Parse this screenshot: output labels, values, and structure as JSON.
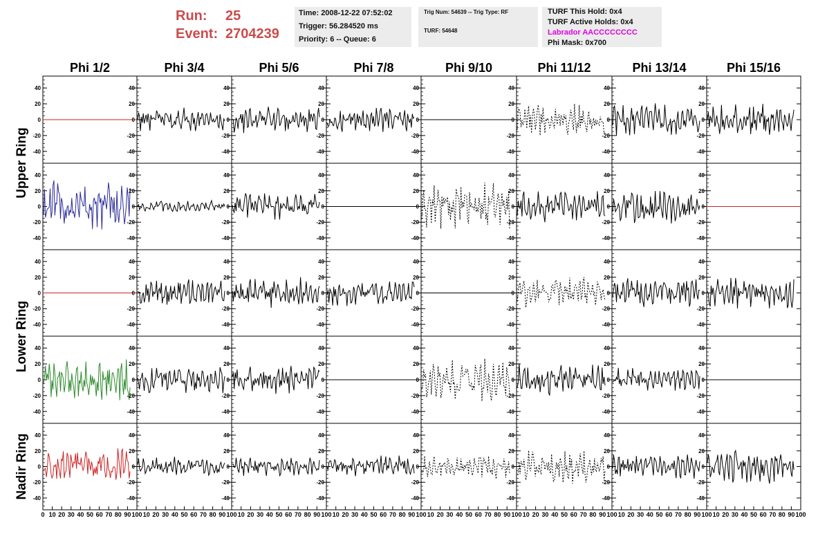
{
  "header": {
    "run_label": "Run:",
    "run_value": "25",
    "event_label": "Event:",
    "event_value": "2704239",
    "time": "Time: 2008-12-22 07:52:02",
    "trigger": "Trigger: 56.284520 ms",
    "priority": "Priority: 6 -- Queue: 6",
    "trig_num": "Trig Num: 54639 -- Trig Type: RF",
    "turf": "TURF: 54648",
    "turf_hold": "TURF This Hold: 0x4",
    "turf_active": "TURF Active Holds: 0x4",
    "labrador": "Labrador AACCCCCCCC",
    "phi_mask": "Phi Mask: 0x700"
  },
  "colors": {
    "header_red": "#c94c4c",
    "labrador_magenta": "#e000e0",
    "trace_black": "#000000",
    "trace_red": "#cc2222",
    "trace_blue": "#2a2a9a",
    "trace_green": "#2a8a2a",
    "box_bg": "#ececec"
  },
  "chart_data": {
    "type": "line",
    "columns": [
      "Phi 1/2",
      "Phi 3/4",
      "Phi 5/6",
      "Phi 7/8",
      "Phi 9/10",
      "Phi 11/12",
      "Phi 13/14",
      "Phi 15/16"
    ],
    "rows": [
      "Upper Ring",
      "",
      "Lower Ring",
      "",
      "Nadir Ring"
    ],
    "y_ticks": [
      "40",
      "20",
      "0",
      "-20",
      "-40"
    ],
    "x_ticks": [
      [
        "0",
        "10",
        "20",
        "30",
        "40",
        "50",
        "60",
        "70",
        "80",
        "90",
        "100"
      ],
      [
        "10",
        "20",
        "30",
        "40",
        "50",
        "60",
        "70",
        "80",
        "90",
        "100"
      ],
      [
        "10",
        "20",
        "30",
        "40",
        "50",
        "60",
        "70",
        "80",
        "90",
        "100"
      ],
      [
        "10",
        "20",
        "30",
        "40",
        "50",
        "60",
        "70",
        "80",
        "90",
        "100"
      ],
      [
        "10",
        "20",
        "30",
        "40",
        "50",
        "60",
        "70",
        "80",
        "90",
        "100"
      ],
      [
        "10",
        "20",
        "30",
        "40",
        "50",
        "60",
        "70",
        "80",
        "90",
        "100"
      ],
      [
        "10",
        "20",
        "30",
        "40",
        "50",
        "60",
        "70",
        "80",
        "90",
        "100"
      ],
      [
        "10",
        "20",
        "30",
        "40",
        "50",
        "60",
        "70",
        "80",
        "90",
        "100"
      ]
    ],
    "ylim": [
      -55,
      55
    ],
    "xlim": [
      0,
      100
    ],
    "trace_length": 92,
    "panels": [
      [
        {
          "style": "flat",
          "color": "red",
          "amp": 0
        },
        {
          "style": "solid",
          "color": "black",
          "amp": 10
        },
        {
          "style": "solid",
          "color": "black",
          "amp": 11
        },
        {
          "style": "solid",
          "color": "black",
          "amp": 10
        },
        {
          "style": "flat",
          "color": "black",
          "amp": 0
        },
        {
          "style": "dashed",
          "color": "black",
          "amp": 13
        },
        {
          "style": "solid",
          "color": "black",
          "amp": 13
        },
        {
          "style": "solid",
          "color": "black",
          "amp": 13
        }
      ],
      [
        {
          "style": "solid",
          "color": "blue",
          "amp": 22
        },
        {
          "style": "solid",
          "color": "black",
          "amp": 5
        },
        {
          "style": "solid",
          "color": "black",
          "amp": 12
        },
        {
          "style": "flat",
          "color": "black",
          "amp": 0
        },
        {
          "style": "dashed",
          "color": "black",
          "amp": 20
        },
        {
          "style": "solid",
          "color": "black",
          "amp": 13
        },
        {
          "style": "solid",
          "color": "black",
          "amp": 14
        },
        {
          "style": "flat",
          "color": "red",
          "amp": 0
        }
      ],
      [
        {
          "style": "flat",
          "color": "red",
          "amp": 0
        },
        {
          "style": "solid",
          "color": "black",
          "amp": 12
        },
        {
          "style": "solid",
          "color": "black",
          "amp": 13
        },
        {
          "style": "solid",
          "color": "black",
          "amp": 11
        },
        {
          "style": "flat",
          "color": "black",
          "amp": 0
        },
        {
          "style": "dashed",
          "color": "black",
          "amp": 13
        },
        {
          "style": "solid",
          "color": "black",
          "amp": 12
        },
        {
          "style": "solid",
          "color": "black",
          "amp": 13
        }
      ],
      [
        {
          "style": "solid",
          "color": "green",
          "amp": 17
        },
        {
          "style": "solid",
          "color": "black",
          "amp": 11
        },
        {
          "style": "solid",
          "color": "black",
          "amp": 12
        },
        {
          "style": "flat",
          "color": "black",
          "amp": 0
        },
        {
          "style": "dashed",
          "color": "black",
          "amp": 18
        },
        {
          "style": "solid",
          "color": "black",
          "amp": 13
        },
        {
          "style": "solid",
          "color": "black",
          "amp": 10
        },
        {
          "style": "flat",
          "color": "black",
          "amp": 0
        }
      ],
      [
        {
          "style": "solid",
          "color": "red",
          "amp": 16
        },
        {
          "style": "solid",
          "color": "black",
          "amp": 8
        },
        {
          "style": "solid",
          "color": "black",
          "amp": 8
        },
        {
          "style": "solid",
          "color": "black",
          "amp": 9
        },
        {
          "style": "dashed",
          "color": "black",
          "amp": 10
        },
        {
          "style": "dashed",
          "color": "black",
          "amp": 15
        },
        {
          "style": "solid",
          "color": "black",
          "amp": 10
        },
        {
          "style": "solid",
          "color": "black",
          "amp": 14
        }
      ]
    ]
  }
}
